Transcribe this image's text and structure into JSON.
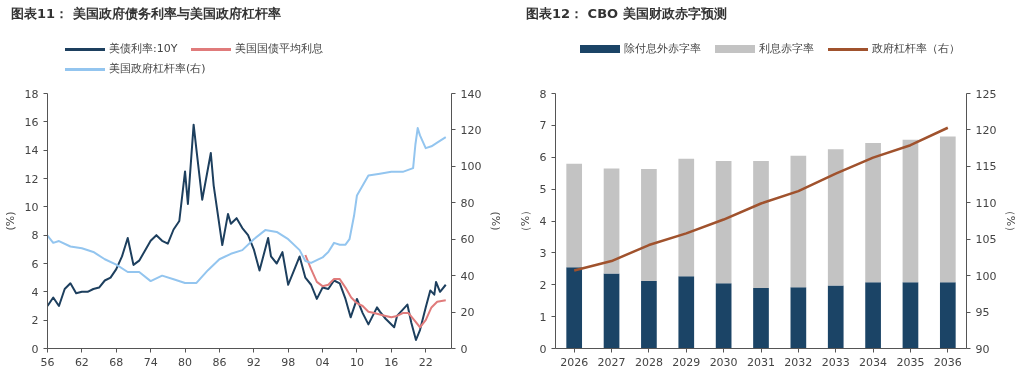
{
  "chart_data": [
    {
      "type": "line",
      "title": "图表11：  美国政府债务利率与美国政府杠杆率",
      "ylabel": "(%)",
      "y2label": "(%)",
      "xlim": [
        1956,
        2026.5
      ],
      "xticks": [
        {
          "value": 1956,
          "label": "56"
        },
        {
          "value": 1962,
          "label": "62"
        },
        {
          "value": 1968,
          "label": "68"
        },
        {
          "value": 1974,
          "label": "74"
        },
        {
          "value": 1980,
          "label": "80"
        },
        {
          "value": 1986,
          "label": "86"
        },
        {
          "value": 1992,
          "label": "92"
        },
        {
          "value": 1998,
          "label": "98"
        },
        {
          "value": 2004,
          "label": "04"
        },
        {
          "value": 2010,
          "label": "10"
        },
        {
          "value": 2016,
          "label": "16"
        },
        {
          "value": 2022,
          "label": "22"
        }
      ],
      "ylim": [
        0,
        18
      ],
      "yticks": [
        0,
        2,
        4,
        6,
        8,
        10,
        12,
        14,
        16,
        18
      ],
      "y2lim": [
        0,
        140
      ],
      "y2ticks": [
        0,
        20,
        40,
        60,
        80,
        100,
        120,
        140
      ],
      "grid": false,
      "legend": "top",
      "series": [
        {
          "name": "美债利率:10Y",
          "color": "#1d3f5e",
          "x": [
            1956,
            1957,
            1958,
            1959,
            1960,
            1961,
            1962,
            1963,
            1964,
            1965,
            1966,
            1967,
            1968,
            1969,
            1970,
            1971,
            1972,
            1973,
            1974,
            1975,
            1976,
            1977,
            1978,
            1979,
            1980,
            1980.5,
            1981.5,
            1982,
            1983,
            1984.5,
            1985,
            1986.5,
            1987.5,
            1988,
            1989,
            1990,
            1991,
            1992,
            1993,
            1994.5,
            1995,
            1996,
            1997,
            1998,
            1999,
            2000,
            2001,
            2002,
            2003,
            2004,
            2005,
            2006,
            2007,
            2008,
            2008.9,
            2010,
            2011,
            2012,
            2013.5,
            2014,
            2015,
            2016.5,
            2017,
            2018.8,
            2019.5,
            2020.3,
            2021,
            2022,
            2022.8,
            2023.5,
            2023.8,
            2024.5,
            2025.5
          ],
          "values": [
            3.0,
            3.6,
            3.0,
            4.2,
            4.6,
            3.9,
            4.0,
            4.0,
            4.2,
            4.3,
            4.8,
            5.0,
            5.6,
            6.5,
            7.8,
            5.9,
            6.2,
            6.9,
            7.6,
            8.0,
            7.6,
            7.4,
            8.4,
            9.0,
            12.5,
            10.2,
            15.8,
            14.0,
            10.5,
            13.8,
            11.5,
            7.3,
            9.5,
            8.8,
            9.2,
            8.5,
            8.0,
            7.0,
            5.5,
            7.8,
            6.5,
            6.0,
            6.8,
            4.5,
            5.5,
            6.5,
            5.0,
            4.5,
            3.5,
            4.3,
            4.2,
            4.8,
            4.6,
            3.5,
            2.2,
            3.5,
            2.5,
            1.7,
            2.9,
            2.6,
            2.1,
            1.5,
            2.3,
            3.1,
            1.8,
            0.6,
            1.3,
            2.9,
            4.1,
            3.8,
            4.7,
            4.0,
            4.5
          ]
        },
        {
          "name": "美国国债平均利息",
          "color": "#e07b7b",
          "x": [
            2001,
            2002,
            2003,
            2004,
            2005,
            2006,
            2007,
            2008,
            2009,
            2010,
            2011,
            2012,
            2013,
            2014,
            2015,
            2016,
            2017,
            2018,
            2019,
            2020,
            2021,
            2022,
            2023,
            2024,
            2025.5
          ],
          "values": [
            6.6,
            5.6,
            4.7,
            4.4,
            4.5,
            4.9,
            4.9,
            4.3,
            3.6,
            3.2,
            3.0,
            2.6,
            2.5,
            2.4,
            2.3,
            2.2,
            2.3,
            2.5,
            2.5,
            2.0,
            1.5,
            2.0,
            2.9,
            3.3,
            3.4
          ]
        },
        {
          "name": "美国政府杠杆率(右)",
          "color": "#93c5ef",
          "axis": "y2",
          "x": [
            1956,
            1957,
            1958,
            1960,
            1962,
            1964,
            1966,
            1968,
            1970,
            1972,
            1974,
            1976,
            1978,
            1980,
            1982,
            1984,
            1986,
            1988,
            1990,
            1992,
            1994,
            1996,
            1998,
            2000,
            2001,
            2002,
            2004,
            2005,
            2006,
            2007,
            2008,
            2008.7,
            2009.5,
            2010,
            2012,
            2014,
            2016,
            2018,
            2019.8,
            2020.2,
            2020.6,
            2021,
            2022,
            2023,
            2024,
            2025.5
          ],
          "values": [
            62,
            58,
            59,
            56,
            55,
            53,
            49,
            46,
            42,
            42,
            37,
            40,
            38,
            36,
            36,
            43,
            49,
            52,
            54,
            60,
            65,
            64,
            60,
            54,
            48,
            47,
            50,
            53,
            58,
            57,
            57,
            60,
            73,
            84,
            95,
            96,
            97,
            97,
            99,
            112,
            121,
            117,
            110,
            111,
            113,
            116
          ]
        }
      ]
    },
    {
      "type": "bar",
      "title": "图表12：  CBO 美国财政赤字预测",
      "ylabel": "（%）",
      "y2label": "（%）",
      "stacked": true,
      "categories": [
        "2026",
        "2027",
        "2028",
        "2029",
        "2030",
        "2031",
        "2032",
        "2033",
        "2034",
        "2035",
        "2036"
      ],
      "ylim": [
        0,
        8
      ],
      "yticks": [
        0,
        1,
        2,
        3,
        4,
        5,
        6,
        7,
        8
      ],
      "y2lim": [
        90,
        125
      ],
      "y2ticks": [
        90,
        95,
        100,
        105,
        110,
        115,
        120,
        125
      ],
      "grid": false,
      "legend": "top",
      "series": [
        {
          "name": "除付息外赤字率",
          "color": "#1b4466",
          "values": [
            2.55,
            2.35,
            2.12,
            2.27,
            2.05,
            1.9,
            1.92,
            1.98,
            2.08,
            2.08,
            2.08
          ]
        },
        {
          "name": "利息赤字率",
          "color": "#c3c3c3",
          "values": [
            3.25,
            3.3,
            3.51,
            3.68,
            3.83,
            3.98,
            4.13,
            4.27,
            4.37,
            4.47,
            4.57
          ]
        },
        {
          "name": "政府杠杆率（右）",
          "color": "#a0522d",
          "type": "line",
          "axis": "y2",
          "values": [
            100.7,
            102.0,
            104.2,
            105.8,
            107.7,
            109.9,
            111.6,
            114.0,
            116.2,
            117.9,
            120.3
          ]
        }
      ]
    }
  ]
}
